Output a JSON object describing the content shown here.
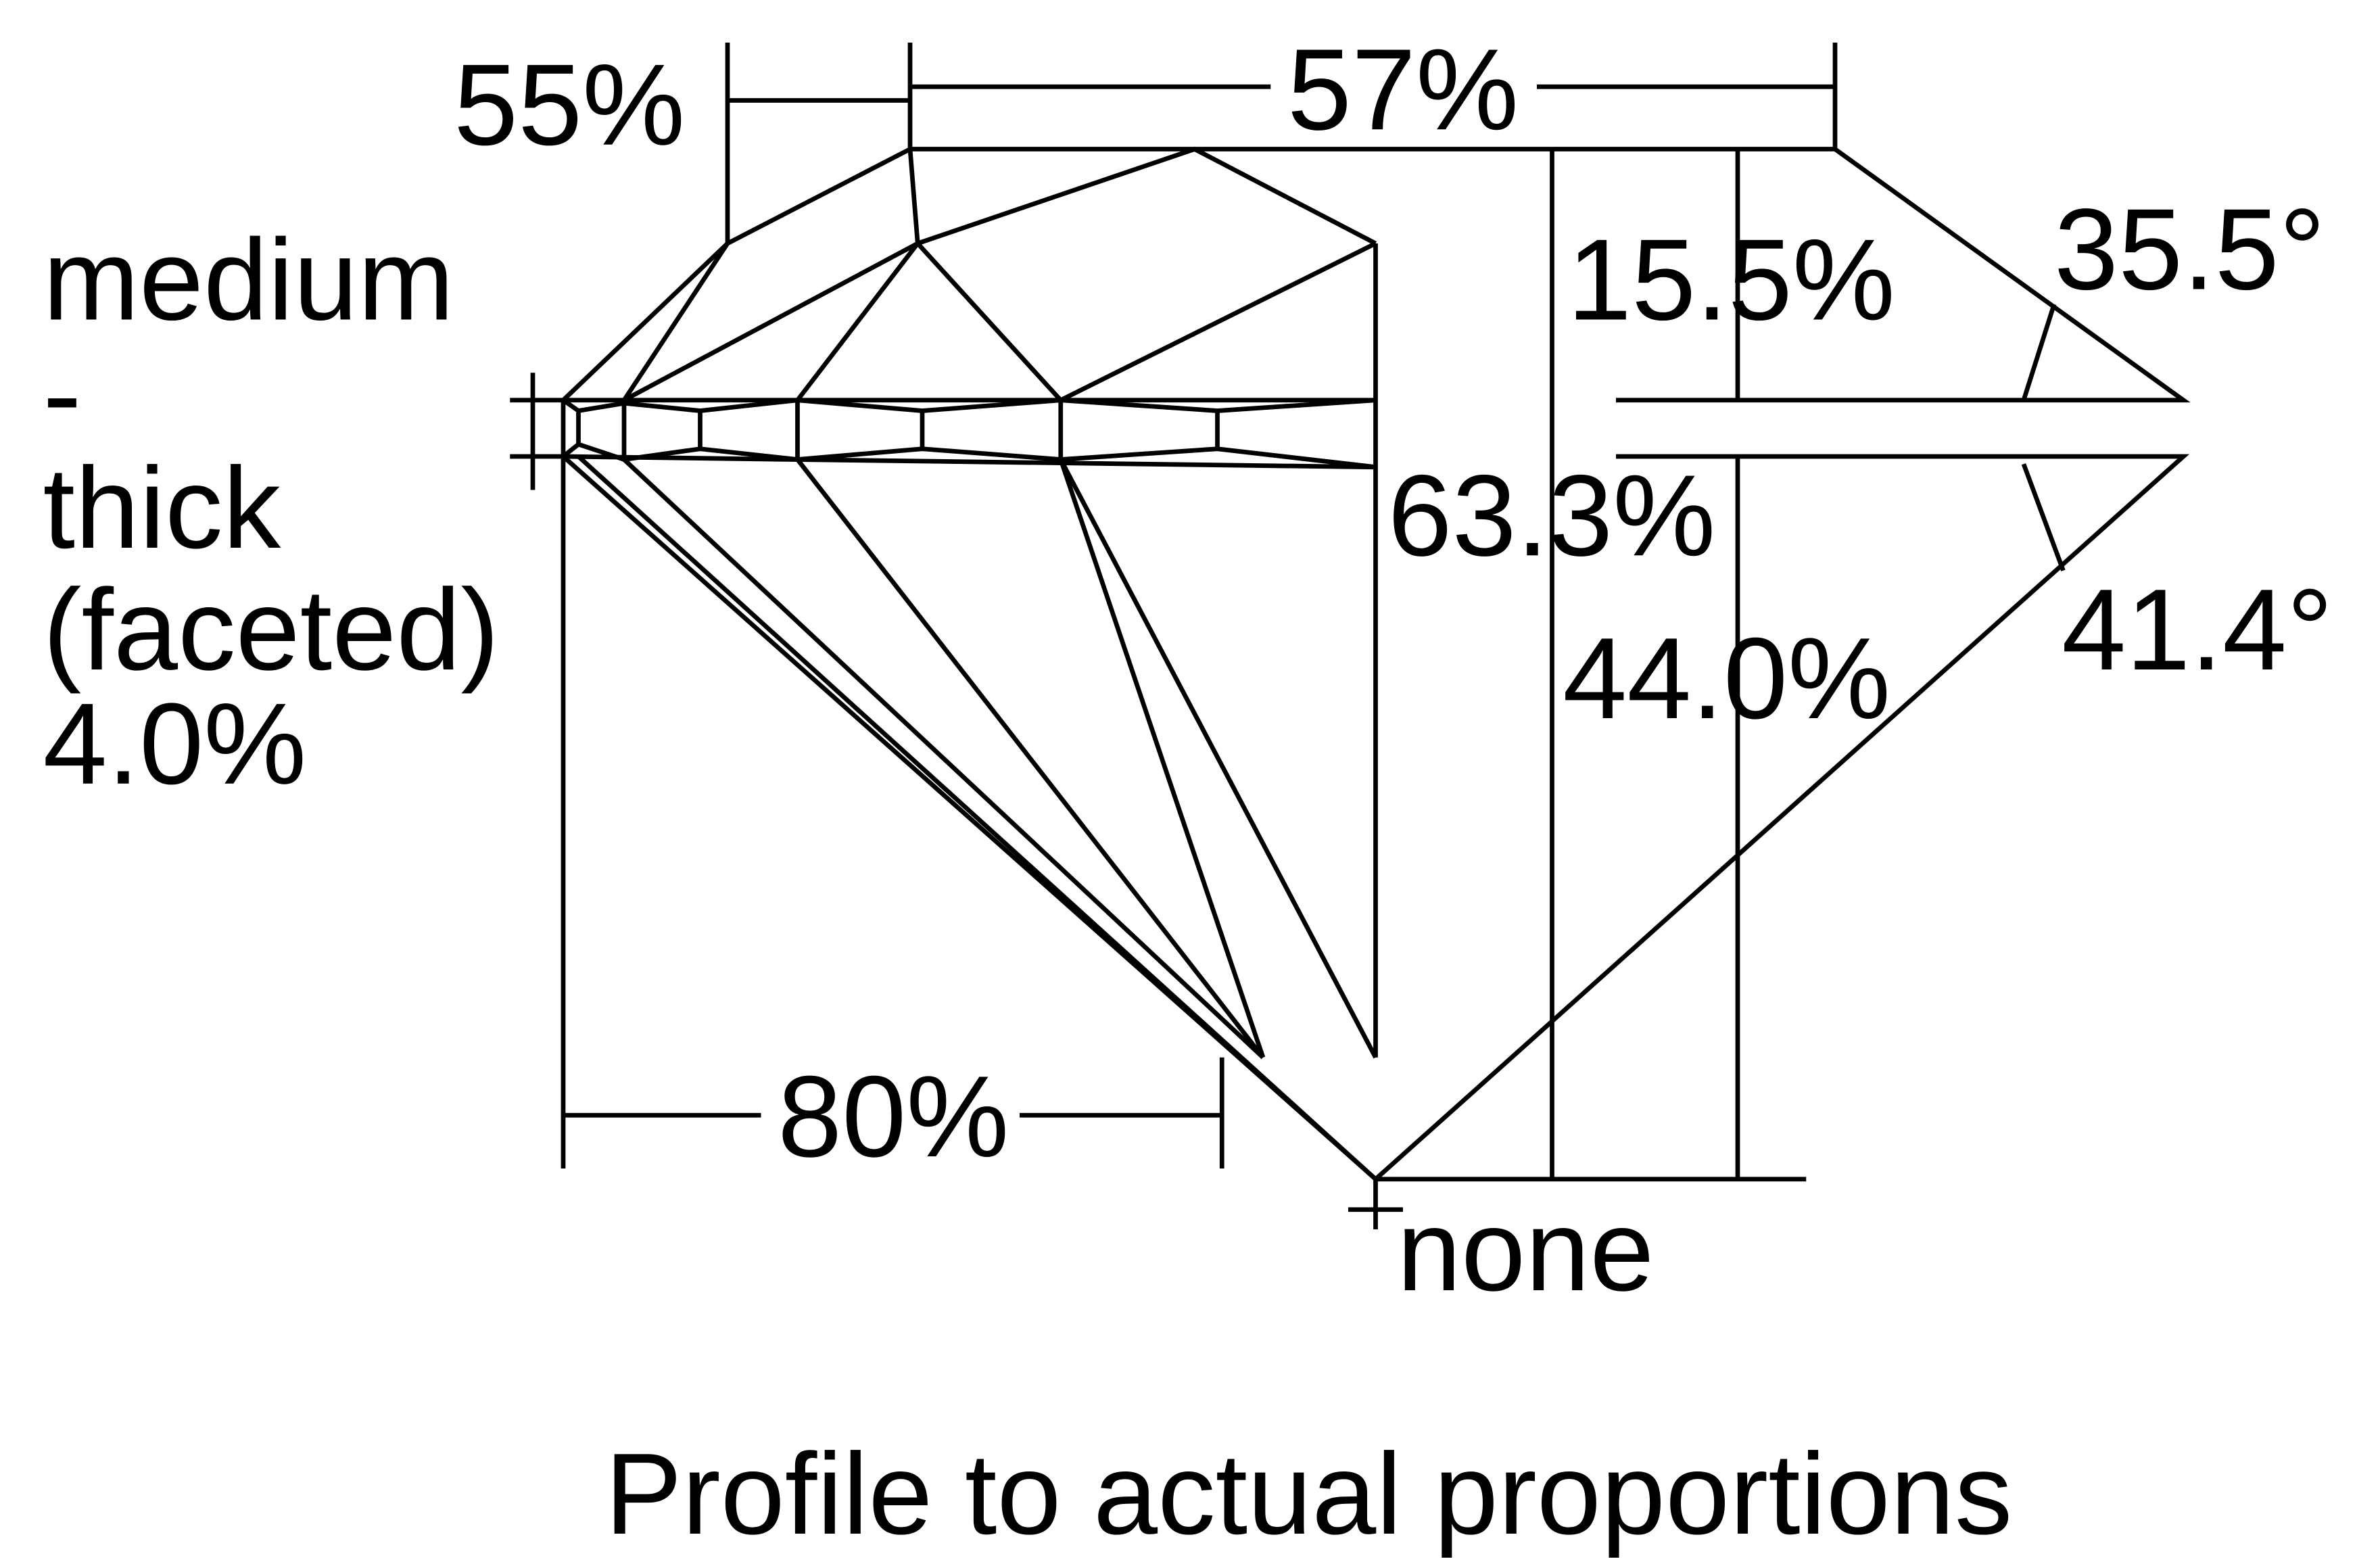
{
  "labels": {
    "crown_height_left": "55%",
    "table": "57%",
    "crown_height": "15.5%",
    "crown_angle": "35.5°",
    "girdle": [
      "medium",
      "-",
      "thick",
      "(faceted)",
      "4.0%"
    ],
    "total_depth": "63.3%",
    "pavilion_angle": "41.4°",
    "pavilion_depth": "44.0%",
    "lower_half": "80%",
    "culet": "none"
  },
  "caption": "Profile to actual proportions"
}
